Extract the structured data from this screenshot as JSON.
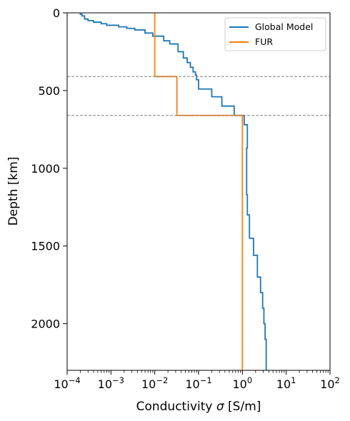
{
  "chart_data": {
    "type": "line",
    "xlabel_text": "Conductivity",
    "xlabel_symbol": "σ",
    "xlabel_unit": "[S/m]",
    "ylabel": "Depth [km]",
    "x_scale": "log",
    "y_inverted": true,
    "xlim": [
      0.0001,
      100
    ],
    "ylim": [
      0,
      2300
    ],
    "x_ticks": [
      {
        "base": "10",
        "exp": "−4",
        "value": 0.0001
      },
      {
        "base": "10",
        "exp": "−3",
        "value": 0.001
      },
      {
        "base": "10",
        "exp": "−2",
        "value": 0.01
      },
      {
        "base": "10",
        "exp": "−1",
        "value": 0.1
      },
      {
        "base": "10",
        "exp": "0",
        "value": 1
      },
      {
        "base": "10",
        "exp": "1",
        "value": 10
      },
      {
        "base": "10",
        "exp": "2",
        "value": 100
      }
    ],
    "y_ticks": [
      0,
      500,
      1000,
      1500,
      2000
    ],
    "grid": false,
    "legend_position": "top-right",
    "reference_lines": [
      {
        "depth": 410,
        "style": "dashed",
        "color": "#808080"
      },
      {
        "depth": 660,
        "style": "dashed",
        "color": "#808080"
      }
    ],
    "series": [
      {
        "name": "Global Model",
        "color": "#1f77b4",
        "points": [
          {
            "x": 0.0002,
            "y": 0
          },
          {
            "x": 0.0002,
            "y": 10
          },
          {
            "x": 0.00022,
            "y": 10
          },
          {
            "x": 0.00022,
            "y": 20
          },
          {
            "x": 0.00025,
            "y": 20
          },
          {
            "x": 0.00025,
            "y": 40
          },
          {
            "x": 0.0003,
            "y": 40
          },
          {
            "x": 0.0003,
            "y": 50
          },
          {
            "x": 0.0004,
            "y": 50
          },
          {
            "x": 0.0004,
            "y": 60
          },
          {
            "x": 0.0006,
            "y": 60
          },
          {
            "x": 0.0006,
            "y": 70
          },
          {
            "x": 0.0008,
            "y": 70
          },
          {
            "x": 0.0008,
            "y": 80
          },
          {
            "x": 0.0015,
            "y": 80
          },
          {
            "x": 0.0015,
            "y": 90
          },
          {
            "x": 0.0023,
            "y": 90
          },
          {
            "x": 0.0023,
            "y": 100
          },
          {
            "x": 0.0035,
            "y": 100
          },
          {
            "x": 0.0035,
            "y": 110
          },
          {
            "x": 0.006,
            "y": 110
          },
          {
            "x": 0.006,
            "y": 130
          },
          {
            "x": 0.009,
            "y": 130
          },
          {
            "x": 0.009,
            "y": 150
          },
          {
            "x": 0.016,
            "y": 150
          },
          {
            "x": 0.016,
            "y": 180
          },
          {
            "x": 0.022,
            "y": 180
          },
          {
            "x": 0.022,
            "y": 200
          },
          {
            "x": 0.034,
            "y": 200
          },
          {
            "x": 0.034,
            "y": 250
          },
          {
            "x": 0.045,
            "y": 250
          },
          {
            "x": 0.045,
            "y": 290
          },
          {
            "x": 0.055,
            "y": 290
          },
          {
            "x": 0.055,
            "y": 320
          },
          {
            "x": 0.065,
            "y": 320
          },
          {
            "x": 0.065,
            "y": 350
          },
          {
            "x": 0.075,
            "y": 350
          },
          {
            "x": 0.075,
            "y": 380
          },
          {
            "x": 0.085,
            "y": 380
          },
          {
            "x": 0.085,
            "y": 400
          },
          {
            "x": 0.09,
            "y": 400
          },
          {
            "x": 0.09,
            "y": 430
          },
          {
            "x": 0.1,
            "y": 430
          },
          {
            "x": 0.1,
            "y": 490
          },
          {
            "x": 0.2,
            "y": 490
          },
          {
            "x": 0.2,
            "y": 540
          },
          {
            "x": 0.34,
            "y": 540
          },
          {
            "x": 0.34,
            "y": 600
          },
          {
            "x": 0.65,
            "y": 600
          },
          {
            "x": 0.65,
            "y": 660
          },
          {
            "x": 1.1,
            "y": 660
          },
          {
            "x": 1.1,
            "y": 720
          },
          {
            "x": 1.3,
            "y": 720
          },
          {
            "x": 1.3,
            "y": 870
          },
          {
            "x": 1.25,
            "y": 870
          },
          {
            "x": 1.25,
            "y": 1170
          },
          {
            "x": 1.3,
            "y": 1170
          },
          {
            "x": 1.3,
            "y": 1300
          },
          {
            "x": 1.45,
            "y": 1300
          },
          {
            "x": 1.45,
            "y": 1450
          },
          {
            "x": 1.8,
            "y": 1450
          },
          {
            "x": 1.8,
            "y": 1560
          },
          {
            "x": 2.2,
            "y": 1560
          },
          {
            "x": 2.2,
            "y": 1700
          },
          {
            "x": 2.6,
            "y": 1700
          },
          {
            "x": 2.6,
            "y": 1800
          },
          {
            "x": 2.9,
            "y": 1800
          },
          {
            "x": 2.9,
            "y": 1900
          },
          {
            "x": 3.1,
            "y": 1900
          },
          {
            "x": 3.1,
            "y": 2000
          },
          {
            "x": 3.3,
            "y": 2000
          },
          {
            "x": 3.3,
            "y": 2100
          },
          {
            "x": 3.5,
            "y": 2100
          },
          {
            "x": 3.5,
            "y": 2300
          }
        ]
      },
      {
        "name": "FUR",
        "color": "#ff7f0e",
        "points": [
          {
            "x": 0.01,
            "y": 0
          },
          {
            "x": 0.01,
            "y": 410
          },
          {
            "x": 0.032,
            "y": 410
          },
          {
            "x": 0.032,
            "y": 660
          },
          {
            "x": 1.0,
            "y": 660
          },
          {
            "x": 1.0,
            "y": 2300
          }
        ]
      }
    ]
  }
}
